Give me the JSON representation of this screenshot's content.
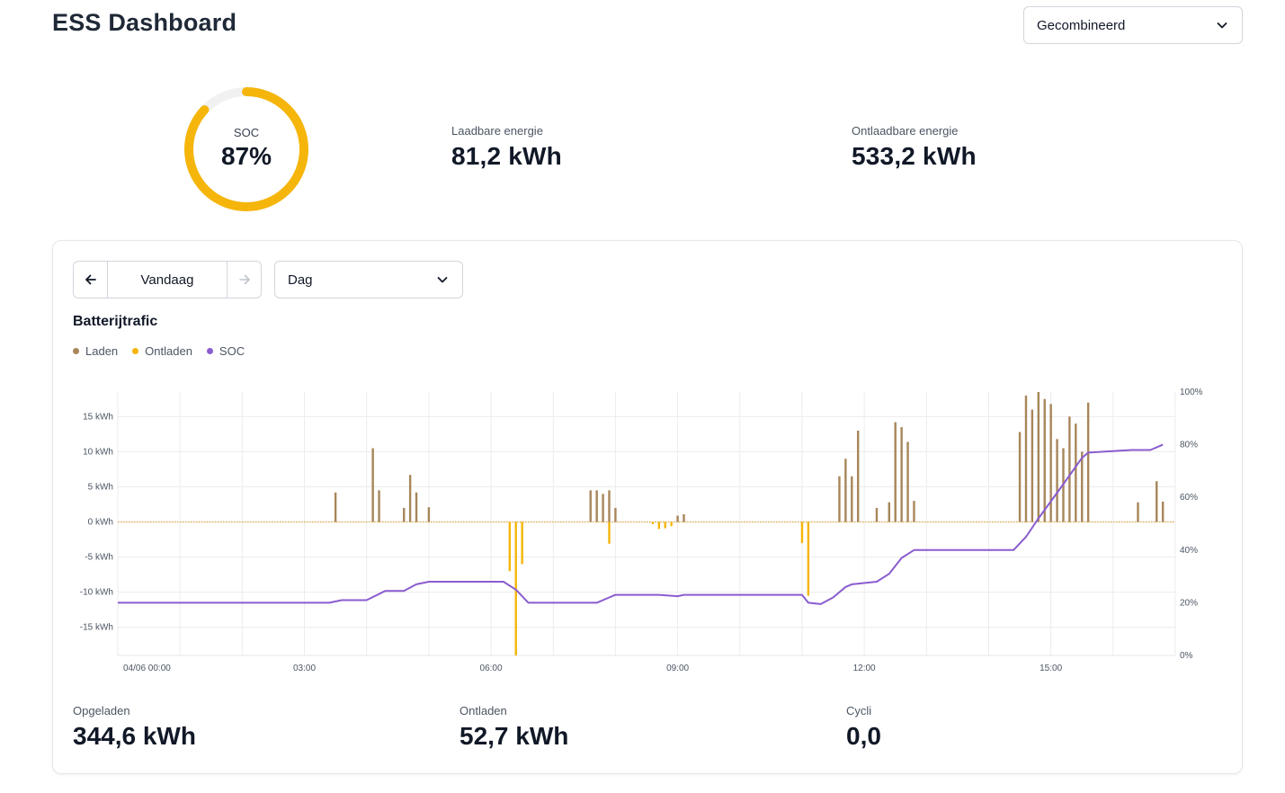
{
  "header": {
    "title": "ESS Dashboard"
  },
  "mode_select": {
    "value": "Gecombineerd"
  },
  "soc": {
    "label": "SOC",
    "value_text": "87%",
    "percent": 87,
    "color": "#f5b50a",
    "track_color": "#f1f1f1"
  },
  "kpis": {
    "chargeable": {
      "label": "Laadbare energie",
      "value": "81,2 kWh"
    },
    "dischargeable": {
      "label": "Ontlaadbare energie",
      "value": "533,2 kWh"
    }
  },
  "controls": {
    "date_label": "Vandaag",
    "period_value": "Dag"
  },
  "chart_title": "Batterijtrafic",
  "legend": [
    {
      "name": "Laden",
      "color": "#a7865a"
    },
    {
      "name": "Ontladen",
      "color": "#f5b50a"
    },
    {
      "name": "SOC",
      "color": "#8a5ccf"
    }
  ],
  "stats": {
    "charged": {
      "label": "Opgeladen",
      "value": "344,6 kWh"
    },
    "discharged": {
      "label": "Ontladen",
      "value": "52,7 kWh"
    },
    "cycles": {
      "label": "Cycli",
      "value": "0,0"
    }
  },
  "chart_data": {
    "type": "bar",
    "title": "Batterijtrafic",
    "x_tick_labels": [
      "04/06 00:00",
      "03:00",
      "06:00",
      "09:00",
      "12:00",
      "15:00"
    ],
    "x_range_hours": [
      0,
      17
    ],
    "y_left_tick_labels": [
      "15 kWh",
      "10 kWh",
      "5 kWh",
      "0 kWh",
      "-5 kWh",
      "-10 kWh",
      "-15 kWh"
    ],
    "y_left_ticks": [
      15,
      10,
      5,
      0,
      -5,
      -10,
      -15
    ],
    "ylim_left": [
      -19,
      18.5
    ],
    "y_right_tick_labels": [
      "100%",
      "80%",
      "60%",
      "40%",
      "20%",
      "0%"
    ],
    "y_right_ticks": [
      100,
      80,
      60,
      40,
      20,
      0
    ],
    "ylim_right": [
      0,
      100
    ],
    "grid": true,
    "legend_position": "top-left",
    "series": [
      {
        "name": "Laden",
        "color": "#a7865a",
        "points": [
          [
            3.5,
            4.2
          ],
          [
            4.1,
            10.5
          ],
          [
            4.2,
            4.5
          ],
          [
            4.6,
            2.0
          ],
          [
            4.7,
            6.7
          ],
          [
            4.8,
            4.2
          ],
          [
            5.0,
            2.1
          ],
          [
            7.6,
            4.5
          ],
          [
            7.7,
            4.5
          ],
          [
            7.8,
            4.0
          ],
          [
            7.9,
            4.5
          ],
          [
            8.0,
            2.0
          ],
          [
            9.0,
            0.9
          ],
          [
            9.1,
            1.1
          ],
          [
            11.6,
            6.5
          ],
          [
            11.7,
            9.0
          ],
          [
            11.8,
            6.5
          ],
          [
            11.9,
            13.0
          ],
          [
            12.2,
            2.0
          ],
          [
            12.4,
            2.8
          ],
          [
            12.5,
            14.2
          ],
          [
            12.6,
            13.5
          ],
          [
            12.7,
            11.4
          ],
          [
            12.8,
            3.0
          ],
          [
            14.5,
            12.8
          ],
          [
            14.6,
            18.0
          ],
          [
            14.7,
            16.0
          ],
          [
            14.8,
            18.5
          ],
          [
            14.9,
            17.5
          ],
          [
            15.0,
            16.8
          ],
          [
            15.1,
            11.8
          ],
          [
            15.2,
            10.5
          ],
          [
            15.3,
            15.0
          ],
          [
            15.4,
            14.0
          ],
          [
            15.5,
            10.0
          ],
          [
            15.6,
            17.0
          ],
          [
            16.4,
            2.8
          ],
          [
            16.7,
            5.8
          ],
          [
            16.8,
            2.9
          ]
        ]
      },
      {
        "name": "Ontladen",
        "color": "#f5b50a",
        "points": [
          [
            6.3,
            -7.0
          ],
          [
            6.4,
            -19.0
          ],
          [
            6.5,
            -6.0
          ],
          [
            7.9,
            -3.1
          ],
          [
            8.6,
            -0.3
          ],
          [
            8.7,
            -1.0
          ],
          [
            8.8,
            -0.9
          ],
          [
            8.9,
            -0.6
          ],
          [
            11.0,
            -3.0
          ],
          [
            11.1,
            -10.5
          ]
        ]
      },
      {
        "name": "SOC",
        "color": "#8a5ccf",
        "axis": "right",
        "points": [
          [
            0,
            20
          ],
          [
            3.4,
            20
          ],
          [
            3.6,
            21
          ],
          [
            4.0,
            21
          ],
          [
            4.3,
            24.5
          ],
          [
            4.5,
            24.5
          ],
          [
            4.6,
            24.5
          ],
          [
            4.8,
            27
          ],
          [
            5.0,
            28
          ],
          [
            6.2,
            28
          ],
          [
            6.4,
            25
          ],
          [
            6.6,
            20
          ],
          [
            7.7,
            20
          ],
          [
            7.9,
            22
          ],
          [
            8.0,
            23
          ],
          [
            8.7,
            23
          ],
          [
            9.0,
            22.5
          ],
          [
            9.1,
            23
          ],
          [
            11.0,
            23
          ],
          [
            11.1,
            20
          ],
          [
            11.3,
            19.5
          ],
          [
            11.5,
            22
          ],
          [
            11.7,
            26
          ],
          [
            11.8,
            27
          ],
          [
            12.2,
            28
          ],
          [
            12.4,
            31
          ],
          [
            12.6,
            37
          ],
          [
            12.8,
            40
          ],
          [
            14.4,
            40
          ],
          [
            14.6,
            45
          ],
          [
            14.8,
            52
          ],
          [
            15.2,
            65
          ],
          [
            15.5,
            75
          ],
          [
            15.6,
            77
          ],
          [
            16.3,
            78
          ],
          [
            16.6,
            78
          ],
          [
            16.8,
            80
          ]
        ]
      }
    ]
  }
}
